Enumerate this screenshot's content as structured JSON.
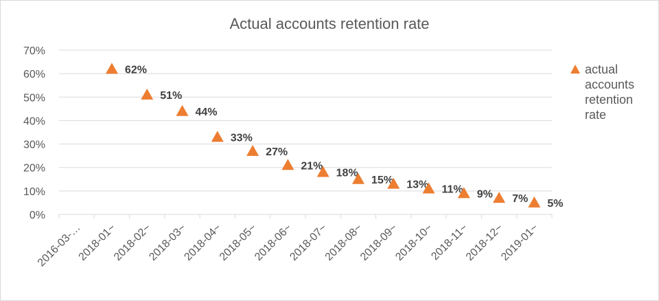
{
  "chart_data": {
    "type": "scatter",
    "title": "Actual accounts retention rate",
    "xlabel": "",
    "ylabel": "",
    "categories": [
      "2016-03-…",
      "2018-01~",
      "2018-02~",
      "2018-03~",
      "2018-04~",
      "2018-05~",
      "2018-06~",
      "2018-07~",
      "2018-08~",
      "2018-09~",
      "2018-10~",
      "2018-11~",
      "2018-12~",
      "2019-01~"
    ],
    "series": [
      {
        "name": "actual accounts retention rate",
        "values": [
          null,
          0.62,
          0.51,
          0.44,
          0.33,
          0.27,
          0.21,
          0.18,
          0.15,
          0.13,
          0.11,
          0.09,
          0.07,
          0.05
        ],
        "labels": [
          null,
          "62%",
          "51%",
          "44%",
          "33%",
          "27%",
          "21%",
          "18%",
          "15%",
          "13%",
          "11%",
          "9%",
          "7%",
          "5%"
        ],
        "marker": "triangle",
        "color": "#ED7D31"
      }
    ],
    "ylim": [
      0,
      0.7
    ],
    "yticks": [
      0,
      0.1,
      0.2,
      0.3,
      0.4,
      0.5,
      0.6,
      0.7
    ],
    "ytick_labels": [
      "0%",
      "10%",
      "20%",
      "30%",
      "40%",
      "50%",
      "60%",
      "70%"
    ],
    "grid": true,
    "legend_position": "right"
  }
}
